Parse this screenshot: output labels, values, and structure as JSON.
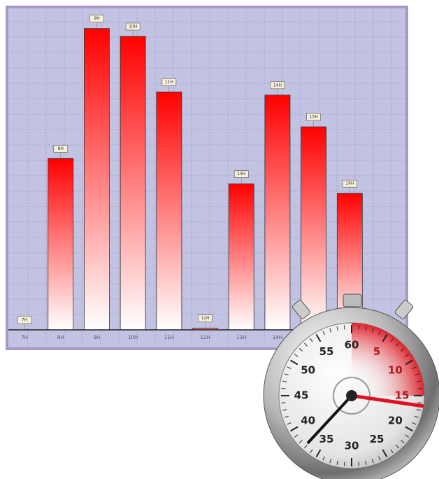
{
  "chart_data": {
    "type": "bar",
    "categories": [
      "7H",
      "8H",
      "9H",
      "10H",
      "11H",
      "12H",
      "13H",
      "14H",
      "15H",
      "16H"
    ],
    "values": [
      0,
      54,
      95,
      92.5,
      75,
      0.5,
      46,
      74,
      64,
      43
    ],
    "ylim": [
      0,
      100
    ],
    "grid": true,
    "color": "#ff0000"
  },
  "stopwatch": {
    "dial_labels": [
      "60",
      "5",
      "10",
      "15",
      "20",
      "25",
      "30",
      "35",
      "40",
      "45",
      "50",
      "55"
    ]
  }
}
